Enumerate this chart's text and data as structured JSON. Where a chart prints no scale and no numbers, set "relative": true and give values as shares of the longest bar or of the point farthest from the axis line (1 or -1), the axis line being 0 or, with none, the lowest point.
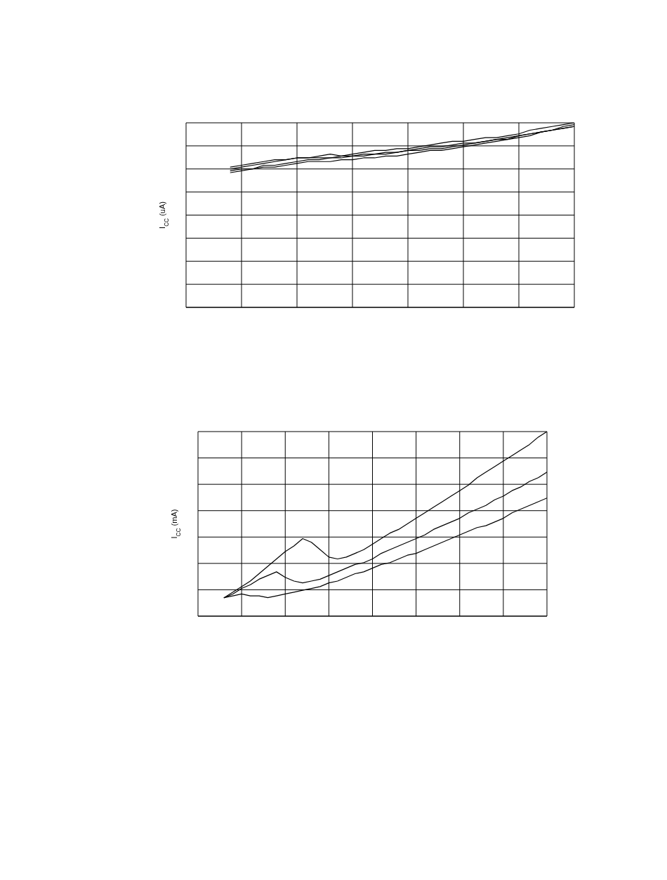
{
  "chart_data": [
    {
      "type": "line",
      "ylabel": "I$_{CC}$ (uA)",
      "relative": true,
      "grid": true,
      "categories": [
        null,
        null,
        null,
        null,
        null,
        null,
        null,
        null,
        null,
        null,
        null,
        null,
        null,
        null,
        null,
        null,
        null,
        null,
        null,
        null,
        null,
        null,
        null,
        null,
        null,
        null,
        null,
        null,
        null,
        null,
        null,
        null,
        null,
        null,
        null,
        null
      ],
      "series": [
        {
          "color": "#000000",
          "values": [
            null,
            null,
            null,
            null,
            0.76,
            0.77,
            0.78,
            0.79,
            0.8,
            0.8,
            0.81,
            0.81,
            0.82,
            0.83,
            0.82,
            0.83,
            0.84,
            0.85,
            0.85,
            0.86,
            0.86,
            0.87,
            0.88,
            0.89,
            0.9,
            0.9,
            0.91,
            0.92,
            0.92,
            0.93,
            0.94,
            0.96,
            0.97,
            0.98,
            0.99,
            1.0
          ]
        },
        {
          "color": "#000000",
          "values": [
            null,
            null,
            null,
            null,
            0.75,
            0.76,
            0.77,
            0.78,
            0.79,
            0.8,
            0.81,
            0.81,
            0.81,
            0.81,
            0.82,
            0.82,
            0.83,
            0.83,
            0.84,
            0.84,
            0.85,
            0.86,
            0.87,
            0.87,
            0.88,
            0.89,
            0.89,
            0.9,
            0.91,
            0.92,
            0.93,
            0.94,
            0.95,
            0.96,
            0.97,
            0.98
          ]
        },
        {
          "color": "#000000",
          "values": [
            null,
            null,
            null,
            null,
            0.74,
            0.75,
            0.75,
            0.77,
            0.77,
            0.78,
            0.79,
            0.8,
            0.8,
            0.81,
            0.81,
            0.82,
            0.82,
            0.83,
            0.83,
            0.84,
            0.85,
            0.85,
            0.86,
            0.86,
            0.87,
            0.88,
            0.89,
            0.9,
            0.91,
            0.91,
            0.93,
            0.94,
            0.95,
            0.96,
            0.97,
            0.98
          ]
        },
        {
          "color": "#000000",
          "values": [
            null,
            null,
            null,
            null,
            0.73,
            0.74,
            0.75,
            0.76,
            0.76,
            0.77,
            0.78,
            0.79,
            0.79,
            0.79,
            0.8,
            0.8,
            0.81,
            0.81,
            0.82,
            0.82,
            0.83,
            0.84,
            0.85,
            0.85,
            0.86,
            0.87,
            0.88,
            0.89,
            0.9,
            0.91,
            0.92,
            0.93,
            0.95,
            0.96,
            0.98,
            0.99
          ]
        }
      ]
    },
    {
      "type": "line",
      "ylabel": "I$_{CC}$ (mA)",
      "relative": true,
      "grid": true,
      "categories": [
        null,
        null,
        null,
        null,
        null,
        null,
        null,
        null,
        null,
        null,
        null,
        null,
        null,
        null,
        null,
        null,
        null,
        null,
        null,
        null,
        null,
        null,
        null,
        null,
        null,
        null,
        null,
        null,
        null,
        null,
        null,
        null,
        null,
        null,
        null,
        null,
        null,
        null,
        null,
        null,
        null
      ],
      "series": [
        {
          "color": "#000000",
          "values": [
            null,
            null,
            null,
            0.1,
            0.13,
            0.16,
            0.19,
            0.23,
            0.27,
            0.31,
            0.35,
            0.38,
            0.42,
            0.4,
            0.36,
            0.32,
            0.31,
            0.32,
            0.34,
            0.36,
            0.39,
            0.42,
            0.45,
            0.47,
            0.5,
            0.53,
            0.56,
            0.59,
            0.62,
            0.65,
            0.68,
            0.71,
            0.75,
            0.78,
            0.81,
            0.84,
            0.87,
            0.9,
            0.93,
            0.97,
            1.0
          ]
        },
        {
          "color": "#000000",
          "values": [
            null,
            null,
            null,
            0.1,
            0.12,
            0.15,
            0.17,
            0.2,
            0.22,
            0.24,
            0.21,
            0.19,
            0.18,
            0.19,
            0.2,
            0.22,
            0.24,
            0.26,
            0.28,
            0.29,
            0.31,
            0.34,
            0.36,
            0.38,
            0.4,
            0.42,
            0.44,
            0.47,
            0.49,
            0.51,
            0.53,
            0.56,
            0.58,
            0.6,
            0.63,
            0.65,
            0.68,
            0.7,
            0.73,
            0.75,
            0.78
          ]
        },
        {
          "color": "#000000",
          "values": [
            null,
            null,
            null,
            0.1,
            0.11,
            0.12,
            0.11,
            0.11,
            0.1,
            0.11,
            0.12,
            0.13,
            0.14,
            0.15,
            0.16,
            0.18,
            0.19,
            0.21,
            0.23,
            0.24,
            0.26,
            0.28,
            0.29,
            0.31,
            0.33,
            0.34,
            0.36,
            0.38,
            0.4,
            0.42,
            0.44,
            0.46,
            0.48,
            0.49,
            0.51,
            0.53,
            0.56,
            0.58,
            0.6,
            0.62,
            0.64
          ]
        }
      ]
    }
  ]
}
